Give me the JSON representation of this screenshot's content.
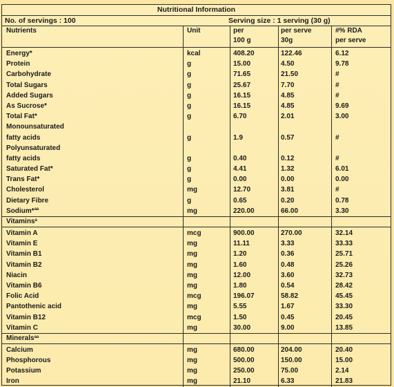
{
  "title": "Nutritional Information",
  "servings_line": "No. of servings : 100",
  "serving_size_line": "Serving size : 1 serving (30 g)",
  "columns": {
    "nutrients": "Nutrients",
    "unit": "Unit",
    "per_line1": "per",
    "per_line2": "100 g",
    "serve_line1": "per serve",
    "serve_line2": "30g",
    "rda_line1": "#% RDA",
    "rda_line2": "per serve"
  },
  "nutrients": [
    {
      "name": "Energy*",
      "unit": "kcal",
      "per100": "408.20",
      "serve": "122.46",
      "rda": "6.12"
    },
    {
      "name": "Protein",
      "unit": "g",
      "per100": "15.00",
      "serve": "4.50",
      "rda": "9.78"
    },
    {
      "name": "Carbohydrate",
      "unit": "g",
      "per100": "71.65",
      "serve": "21.50",
      "rda": "#"
    },
    {
      "name": "Total Sugars",
      "unit": "g",
      "per100": "25.67",
      "serve": "7.70",
      "rda": "#"
    },
    {
      "name": "Added Sugars",
      "unit": "g",
      "per100": "16.15",
      "serve": "4.85",
      "rda": "#"
    },
    {
      "name": "As Sucrose*",
      "unit": "g",
      "per100": "16.15",
      "serve": "4.85",
      "rda": "9.69"
    },
    {
      "name": "Total Fat*",
      "unit": "g",
      "per100": "6.70",
      "serve": "2.01",
      "rda": "3.00"
    },
    {
      "name": "Monounsaturated",
      "unit": "",
      "per100": "",
      "serve": "",
      "rda": ""
    },
    {
      "name": "fatty acids",
      "unit": "g",
      "per100": "1.9",
      "serve": "0.57",
      "rda": "#"
    },
    {
      "name": "Polyunsaturated",
      "unit": "",
      "per100": "",
      "serve": "",
      "rda": ""
    },
    {
      "name": "fatty acids",
      "unit": "g",
      "per100": "0.40",
      "serve": "0.12",
      "rda": "#"
    },
    {
      "name": "Saturated Fat*",
      "unit": "g",
      "per100": "4.41",
      "serve": "1.32",
      "rda": "6.01"
    },
    {
      "name": "Trans Fat*",
      "unit": "g",
      "per100": "0.00",
      "serve": "0.00",
      "rda": "0.00"
    },
    {
      "name": "Cholesterol",
      "unit": "mg",
      "per100": "12.70",
      "serve": "3.81",
      "rda": "#"
    },
    {
      "name": "Dietary Fibre",
      "unit": "g",
      "per100": "0.65",
      "serve": "0.20",
      "rda": "0.78"
    },
    {
      "name": "Sodium*",
      "sup": "aa",
      "unit": "mg",
      "per100": "220.00",
      "serve": "66.00",
      "rda": "3.30"
    }
  ],
  "vitamins_label": "Vitamins",
  "vitamins_sup": "a",
  "vitamins": [
    {
      "name": "Vitamin A",
      "unit": "mcg",
      "per100": "900.00",
      "serve": "270.00",
      "rda": "32.14"
    },
    {
      "name": "Vitamin E",
      "unit": "mg",
      "per100": "11.11",
      "serve": "3.33",
      "rda": "33.33"
    },
    {
      "name": "Vitamin B1",
      "unit": "mg",
      "per100": "1.20",
      "serve": "0.36",
      "rda": "25.71"
    },
    {
      "name": "Vitamin B2",
      "unit": "mg",
      "per100": "1.60",
      "serve": "0.48",
      "rda": "25.26"
    },
    {
      "name": "Niacin",
      "unit": "mg",
      "per100": "12.00",
      "serve": "3.60",
      "rda": "32.73"
    },
    {
      "name": "Vitamin B6",
      "unit": "mg",
      "per100": "1.80",
      "serve": "0.54",
      "rda": "28.42"
    },
    {
      "name": "Folic Acid",
      "unit": "mcg",
      "per100": "196.07",
      "serve": "58.82",
      "rda": "45.45"
    },
    {
      "name": "Pantothenic acid",
      "unit": "mg",
      "per100": "5.55",
      "serve": "1.67",
      "rda": "33.30"
    },
    {
      "name": "Vitamin B12",
      "unit": "mcg",
      "per100": "1.50",
      "serve": "0.45",
      "rda": "20.45"
    },
    {
      "name": "Vitamin C",
      "unit": "mg",
      "per100": "30.00",
      "serve": "9.00",
      "rda": "13.85"
    }
  ],
  "minerals_label": "Minerals",
  "minerals_sup": "aa",
  "minerals": [
    {
      "name": "Calcium",
      "unit": "mg",
      "per100": "680.00",
      "serve": "204.00",
      "rda": "20.40"
    },
    {
      "name": "Phosphorous",
      "unit": "mg",
      "per100": "500.00",
      "serve": "150.00",
      "rda": "15.00"
    },
    {
      "name": "Potassium",
      "unit": "mg",
      "per100": "250.00",
      "serve": "75.00",
      "rda": "2.14"
    },
    {
      "name": "Iron",
      "unit": "mg",
      "per100": "21.10",
      "serve": "6.33",
      "rda": "21.83"
    }
  ]
}
